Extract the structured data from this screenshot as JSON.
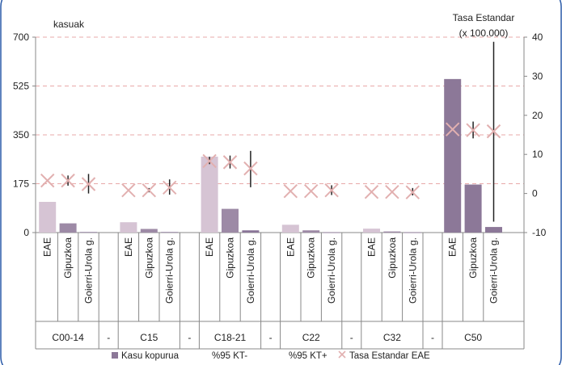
{
  "chart_data": {
    "type": "bar",
    "left_axis_label": "kasuak",
    "right_axis_label_line1": "Tasa Estandar",
    "right_axis_label_line2": "(x 100.000)",
    "left_ticks": [
      "0",
      "175",
      "350",
      "525",
      "700"
    ],
    "right_ticks": [
      "-10",
      "0",
      "10",
      "20",
      "30",
      "40"
    ],
    "ylim_left": [
      0,
      700
    ],
    "ylim_right": [
      -10,
      40
    ],
    "separator_label": "-",
    "groups": [
      {
        "name": "C00-14",
        "bars": [
          {
            "category": "EAE",
            "cases": 110,
            "rate": 3.3,
            "ci_low": null,
            "ci_high": null
          },
          {
            "category": "Gipuzkoa",
            "cases": 33,
            "rate": 3.3,
            "ci_low": 2.0,
            "ci_high": 4.6
          },
          {
            "category": "Goierri-Urola g.",
            "cases": 2,
            "rate": 2.4,
            "ci_low": 0.0,
            "ci_high": 5.0
          }
        ]
      },
      {
        "name": "C15",
        "bars": [
          {
            "category": "EAE",
            "cases": 37,
            "rate": 0.8,
            "ci_low": null,
            "ci_high": null
          },
          {
            "category": "Gipuzkoa",
            "cases": 13,
            "rate": 0.8,
            "ci_low": 0.3,
            "ci_high": 1.4
          },
          {
            "category": "Goierri-Urola g.",
            "cases": 2,
            "rate": 1.5,
            "ci_low": -0.3,
            "ci_high": 3.6
          }
        ]
      },
      {
        "name": "C18-21",
        "bars": [
          {
            "category": "EAE",
            "cases": 272,
            "rate": 8.3,
            "ci_low": 7.5,
            "ci_high": 9.4
          },
          {
            "category": "Gipuzkoa",
            "cases": 85,
            "rate": 8.0,
            "ci_low": 6.4,
            "ci_high": 9.7
          },
          {
            "category": "Goierri-Urola g.",
            "cases": 8,
            "rate": 6.4,
            "ci_low": 1.6,
            "ci_high": 10.9
          }
        ]
      },
      {
        "name": "C22",
        "bars": [
          {
            "category": "EAE",
            "cases": 28,
            "rate": 0.6,
            "ci_low": null,
            "ci_high": null
          },
          {
            "category": "Gipuzkoa",
            "cases": 8,
            "rate": 0.6,
            "ci_low": null,
            "ci_high": null
          },
          {
            "category": "Goierri-Urola g.",
            "cases": 1,
            "rate": 0.8,
            "ci_low": -0.4,
            "ci_high": 2.1
          }
        ]
      },
      {
        "name": "C32",
        "bars": [
          {
            "category": "EAE",
            "cases": 14,
            "rate": 0.4,
            "ci_low": null,
            "ci_high": null
          },
          {
            "category": "Gipuzkoa",
            "cases": 4,
            "rate": 0.4,
            "ci_low": null,
            "ci_high": null
          },
          {
            "category": "Goierri-Urola g.",
            "cases": 1,
            "rate": 0.3,
            "ci_low": -0.5,
            "ci_high": 1.4
          }
        ]
      },
      {
        "name": "C50",
        "bars": [
          {
            "category": "EAE",
            "cases": 550,
            "rate": 16.4,
            "ci_low": null,
            "ci_high": null
          },
          {
            "category": "Gipuzkoa",
            "cases": 172,
            "rate": 16.2,
            "ci_low": 14.1,
            "ci_high": 18.4
          },
          {
            "category": "Goierri-Urola g.",
            "cases": 20,
            "rate": 15.9,
            "ci_low": -7.2,
            "ci_high": 38.8
          }
        ]
      }
    ],
    "legend": [
      {
        "label": "Kasu kopurua",
        "kind": "bar"
      },
      {
        "label": "%95 KT-",
        "kind": "none"
      },
      {
        "label": "%95 KT+",
        "kind": "none"
      },
      {
        "label": "Tasa Estandar EAE",
        "kind": "x-marker"
      }
    ],
    "bar_colors": {
      "EAE": "#d6c4d4",
      "Gipuzkoa": "#9d8aa6",
      "Goierri-Urola g.": "#8a7598"
    },
    "c50_bar_color": "#8c7898",
    "marker_color": "#e2b0b0",
    "error_bar_color": "#222222",
    "grid": "dashed-horizontal",
    "grid_color": "#e8a9a9",
    "frame_color": "#2a5aa8"
  }
}
